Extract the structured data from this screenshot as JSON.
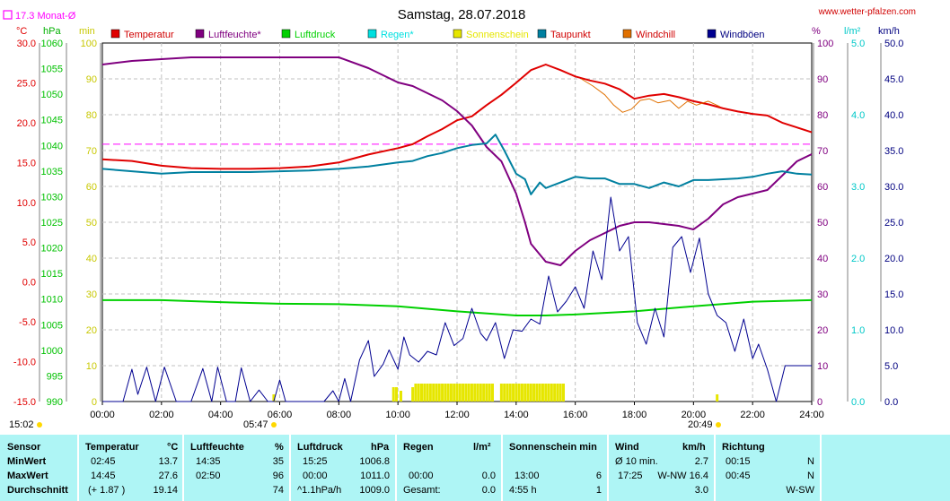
{
  "header": {
    "title": "Samstag, 28.07.2018",
    "site": "www.wetter-pfalzen.com",
    "month_avg": "17.3 Monat-Ø"
  },
  "axes_units": {
    "left": [
      "°C",
      "hPa",
      "min"
    ],
    "right": [
      "%",
      "l/m²",
      "km/h"
    ]
  },
  "legend": [
    {
      "label": "Temperatur",
      "color": "#e00000"
    },
    {
      "label": "Luftfeuchte*",
      "color": "#800080"
    },
    {
      "label": "Luftdruck",
      "color": "#00d000"
    },
    {
      "label": "Regen*",
      "color": "#00e0e0"
    },
    {
      "label": "Sonnenschein",
      "color": "#e6e600"
    },
    {
      "label": "Taupunkt",
      "color": "#0080a0"
    },
    {
      "label": "Windchill",
      "color": "#e07000"
    },
    {
      "label": "Windböen",
      "color": "#000090"
    }
  ],
  "sun": {
    "sunrise": "05:47",
    "sunset": "20:49",
    "left_time": "15:02"
  },
  "chart_data": {
    "type": "line",
    "title": "Samstag, 28.07.2018",
    "x_ticks": [
      "00:00",
      "02:00",
      "04:00",
      "06:00",
      "08:00",
      "10:00",
      "12:00",
      "14:00",
      "16:00",
      "18:00",
      "20:00",
      "22:00",
      "24:00"
    ],
    "xlim": [
      0,
      24
    ],
    "axes": {
      "temp_c": {
        "ylim": [
          -15,
          30
        ],
        "ticks": [
          "30.0",
          "25.0",
          "20.0",
          "15.0",
          "10.0",
          "5.0",
          "0.0",
          "-5.0",
          "-10.0",
          "-15.0"
        ],
        "color": "#e00000"
      },
      "pressure_hpa": {
        "ylim": [
          990,
          1060
        ],
        "ticks": [
          "1060",
          "1055",
          "1050",
          "1045",
          "1040",
          "1035",
          "1030",
          "1025",
          "1020",
          "1015",
          "1010",
          "1005",
          "1000",
          "995",
          "990"
        ],
        "color": "#00c000"
      },
      "sun_min": {
        "ylim": [
          0,
          100
        ],
        "ticks": [
          "100",
          "90",
          "80",
          "70",
          "60",
          "50",
          "40",
          "30",
          "20",
          "10",
          "0"
        ],
        "color": "#c8c800"
      },
      "humidity_pct": {
        "ylim": [
          0,
          100
        ],
        "ticks": [
          "100",
          "90",
          "80",
          "70",
          "60",
          "50",
          "40",
          "30",
          "20",
          "10",
          "0"
        ],
        "color": "#800080"
      },
      "rain_lm2": {
        "ylim": [
          0,
          5
        ],
        "ticks": [
          "5.0",
          "4.0",
          "3.0",
          "2.0",
          "1.0",
          "0.0"
        ],
        "color": "#00c8c8"
      },
      "wind_kmh": {
        "ylim": [
          0,
          50
        ],
        "ticks": [
          "50.0",
          "45.0",
          "40.0",
          "35.0",
          "30.0",
          "25.0",
          "20.0",
          "15.0",
          "10.0",
          "5.0",
          "0.0"
        ],
        "color": "#000080"
      }
    },
    "month_avg_temp": 17.3,
    "series": [
      {
        "name": "Temperatur",
        "axis": "temp_c",
        "color": "#e00000",
        "x": [
          0,
          1,
          2,
          3,
          4,
          5,
          6,
          7,
          8,
          9,
          10,
          10.5,
          11,
          11.5,
          12,
          12.5,
          13,
          13.5,
          14,
          14.5,
          15,
          15.5,
          16,
          16.5,
          17,
          17.5,
          18,
          18.5,
          19,
          19.5,
          20,
          20.5,
          21,
          21.5,
          22,
          22.5,
          23,
          23.5,
          24
        ],
        "y": [
          15.4,
          15.2,
          14.6,
          14.3,
          14.2,
          14.2,
          14.3,
          14.5,
          15.0,
          16.0,
          16.8,
          17.3,
          18.3,
          19.2,
          20.3,
          20.8,
          22.2,
          23.5,
          25.0,
          26.6,
          27.3,
          26.6,
          25.8,
          25.3,
          24.9,
          24.2,
          23.0,
          23.4,
          23.6,
          23.2,
          22.7,
          22.3,
          21.8,
          21.4,
          21.1,
          20.9,
          20.0,
          19.4,
          18.8
        ]
      },
      {
        "name": "Luftfeuchte*",
        "axis": "humidity_pct",
        "color": "#800080",
        "x": [
          0,
          1,
          2,
          3,
          4,
          5,
          6,
          7,
          8,
          9,
          10,
          10.5,
          11,
          11.5,
          12,
          12.5,
          13,
          13.5,
          14,
          14.3,
          14.5,
          15,
          15.5,
          16,
          16.5,
          17,
          17.5,
          18,
          18.5,
          19,
          19.5,
          20,
          20.5,
          21,
          21.5,
          22,
          22.5,
          23,
          23.5,
          24
        ],
        "y": [
          94,
          95,
          95.5,
          96,
          96,
          96,
          96,
          96,
          96,
          93,
          89,
          88,
          86,
          84,
          81,
          77,
          71,
          67,
          58,
          50,
          44,
          39,
          38,
          42,
          45,
          47,
          49,
          50,
          50,
          49.5,
          49,
          48,
          51,
          55,
          57,
          58,
          59,
          63,
          67,
          69
        ]
      },
      {
        "name": "Luftdruck",
        "axis": "pressure_hpa",
        "color": "#00d000",
        "x": [
          0,
          2,
          4,
          6,
          8,
          10,
          12,
          14,
          15,
          16,
          18,
          20,
          22,
          24
        ],
        "y": [
          1009.8,
          1009.8,
          1009.4,
          1009.1,
          1009.0,
          1008.6,
          1007.6,
          1006.8,
          1006.8,
          1007.0,
          1007.6,
          1008.6,
          1009.5,
          1009.8
        ]
      },
      {
        "name": "Taupunkt",
        "axis": "temp_c",
        "color": "#0080a0",
        "x": [
          0,
          1,
          2,
          3,
          4,
          5,
          6,
          7,
          8,
          9,
          10,
          10.5,
          11,
          11.5,
          12,
          12.5,
          13,
          13.3,
          13.6,
          14,
          14.3,
          14.5,
          14.8,
          15,
          15.5,
          16,
          16.5,
          17,
          17.5,
          18,
          18.5,
          19,
          19.5,
          20,
          20.5,
          21,
          21.5,
          22,
          22.5,
          23,
          23.5,
          24
        ],
        "y": [
          14.2,
          13.9,
          13.6,
          13.8,
          13.8,
          13.8,
          13.9,
          14.0,
          14.2,
          14.5,
          15.0,
          15.2,
          15.8,
          16.2,
          16.8,
          17.2,
          17.4,
          18.5,
          16.5,
          13.6,
          12.9,
          11.0,
          12.5,
          11.8,
          12.5,
          13.2,
          13.0,
          13.0,
          12.3,
          12.3,
          11.8,
          12.5,
          12.0,
          12.8,
          12.8,
          12.9,
          13.0,
          13.2,
          13.6,
          13.9,
          13.6,
          13.5
        ]
      },
      {
        "name": "Windchill",
        "axis": "temp_c",
        "color": "#e07000",
        "x": [
          16.2,
          16.6,
          17.0,
          17.3,
          17.6,
          17.9,
          18.2,
          18.5,
          18.8,
          19.2,
          19.5,
          19.8,
          20.1,
          20.5,
          20.9
        ],
        "y": [
          25.5,
          24.6,
          23.5,
          22.2,
          21.3,
          21.7,
          22.8,
          23.0,
          22.5,
          22.8,
          21.8,
          22.7,
          22.2,
          22.7,
          22.0
        ]
      },
      {
        "name": "Windböen",
        "axis": "wind_kmh",
        "color": "#000090",
        "x": [
          0,
          0.7,
          1,
          1.2,
          1.5,
          1.8,
          2.1,
          2.5,
          3,
          3.4,
          3.7,
          3.9,
          4.2,
          4.5,
          4.7,
          5,
          5.3,
          5.6,
          5.8,
          6,
          6.2,
          6.5,
          7,
          7.5,
          7.8,
          8,
          8.2,
          8.4,
          8.7,
          9,
          9.2,
          9.5,
          9.7,
          10,
          10.2,
          10.4,
          10.7,
          11,
          11.3,
          11.6,
          11.9,
          12.2,
          12.5,
          12.8,
          13,
          13.3,
          13.6,
          13.9,
          14.2,
          14.5,
          14.8,
          15.1,
          15.4,
          15.7,
          16,
          16.3,
          16.6,
          16.9,
          17.2,
          17.5,
          17.8,
          18.1,
          18.4,
          18.7,
          19,
          19.3,
          19.6,
          19.9,
          20.2,
          20.5,
          20.8,
          21.1,
          21.4,
          21.7,
          22,
          22.2,
          22.5,
          22.8,
          23.1,
          23.4,
          23.7,
          24
        ],
        "y": [
          0,
          0,
          4.5,
          1,
          4.8,
          0,
          4.8,
          0,
          0,
          4.6,
          0,
          4.8,
          0,
          0,
          4.7,
          0,
          1.6,
          0,
          0,
          3.0,
          0,
          0,
          0,
          0,
          1.5,
          0,
          3.2,
          0,
          5.8,
          8.5,
          3.5,
          5.2,
          7.2,
          4.5,
          9.0,
          6.5,
          5.5,
          7.0,
          6.5,
          11.0,
          7.8,
          8.8,
          13.0,
          9.5,
          8.5,
          11.0,
          6.0,
          10.0,
          9.8,
          11.5,
          10.8,
          17.5,
          12.5,
          14.0,
          16.0,
          13.0,
          21.0,
          17.0,
          28.5,
          21.0,
          23.0,
          11.0,
          8.0,
          13.0,
          9.0,
          21.5,
          23.0,
          18.0,
          22.8,
          15.0,
          12.0,
          11.0,
          7.0,
          11.5,
          6.0,
          8.0,
          4.5,
          0.0,
          5.0,
          5.0,
          5.0,
          5.0
        ]
      }
    ],
    "sunshine_bars": {
      "axis": "sun_min",
      "color": "#e6e600",
      "x": [
        9.85,
        9.95,
        10.1,
        10.5,
        10.6,
        10.7,
        10.8,
        10.9,
        11.0,
        11.1,
        11.2,
        11.3,
        11.4,
        11.5,
        11.6,
        11.7,
        11.8,
        11.9,
        12.0,
        12.1,
        12.2,
        12.3,
        12.4,
        12.5,
        12.6,
        12.7,
        12.8,
        12.9,
        13.0,
        13.1,
        13.2,
        13.5,
        13.6,
        13.7,
        13.8,
        13.9,
        14.0,
        14.1,
        14.2,
        14.3,
        14.4,
        14.5,
        14.6,
        14.7,
        14.8,
        14.9,
        15.0,
        15.1,
        15.2,
        15.3,
        15.4,
        15.5,
        15.6,
        5.8,
        20.8
      ],
      "y": [
        4,
        4,
        3,
        4,
        5,
        5,
        5,
        5,
        5,
        5,
        5,
        5,
        5,
        5,
        5,
        5,
        5,
        5,
        5,
        5,
        5,
        5,
        5,
        5,
        5,
        5,
        5,
        5,
        5,
        5,
        5,
        5,
        5,
        5,
        5,
        5,
        5,
        5,
        5,
        5,
        5,
        5,
        5,
        5,
        5,
        5,
        5,
        5,
        5,
        5,
        5,
        5,
        5,
        2,
        2
      ]
    }
  },
  "stats": {
    "headers": {
      "sensor": "Sensor",
      "temp": "Temperatur",
      "temp_unit": "°C",
      "hum": "Luftfeuchte",
      "hum_unit": "%",
      "press": "Luftdruck",
      "press_unit": "hPa",
      "rain": "Regen",
      "rain_unit": "l/m²",
      "sun": "Sonnenschein min",
      "wind": "Wind",
      "wind_unit": "km/h",
      "dir": "Richtung"
    },
    "rows": [
      {
        "label": "MinWert",
        "t_time": "02:45",
        "t_val": "13.7",
        "h_time": "14:35",
        "h_val": "35",
        "p_time": "15:25",
        "p_val": "1006.8",
        "r_time": "",
        "r_val": "",
        "s_time": "",
        "s_val": "",
        "w_time": "Ø 10 min.",
        "w_val": "2.7",
        "d_time": "00:15",
        "d_val": "N"
      },
      {
        "label": "MaxWert",
        "t_time": "14:45",
        "t_val": "27.6",
        "h_time": "02:50",
        "h_val": "96",
        "p_time": "00:00",
        "p_val": "1011.0",
        "r_time": "00:00",
        "r_val": "0.0",
        "s_time": "13:00",
        "s_val": "6",
        "w_time": "17:25",
        "w_val": "W-NW 16.4",
        "d_time": "00:45",
        "d_val": "N"
      },
      {
        "label": "Durchschnitt",
        "t_time": "(+ 1.87 )",
        "t_val": "19.14",
        "h_time": "",
        "h_val": "74",
        "p_time": "^1.1hPa/h",
        "p_val": "1009.0",
        "r_time": "Gesamt:",
        "r_val": "0.0",
        "s_time": "4:55 h",
        "s_val": "1",
        "w_time": "",
        "w_val": "3.0",
        "d_time": "",
        "d_val": "W-SW"
      }
    ]
  }
}
